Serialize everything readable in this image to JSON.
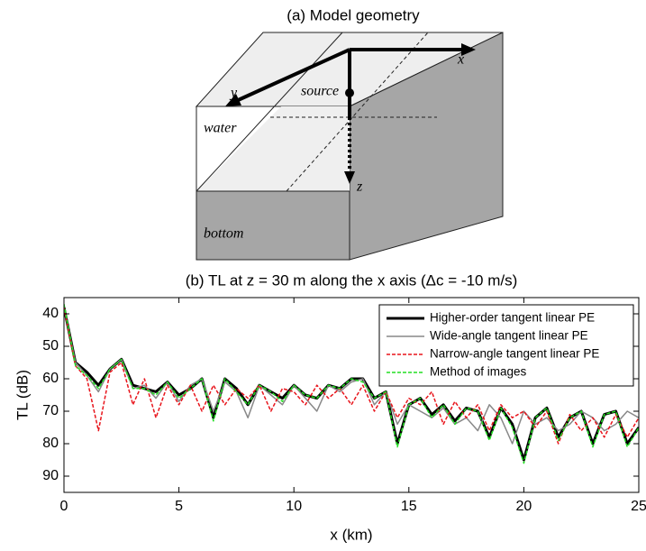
{
  "diagram": {
    "title": "(a) Model geometry",
    "labels": {
      "x": "x",
      "y": "y",
      "z": "z",
      "source": "source",
      "water": "water",
      "bottom": "bottom"
    }
  },
  "chart_data": {
    "type": "line",
    "title": "(b) TL at z = 30 m along the x axis (Δc = -10 m/s)",
    "xlabel": "x (km)",
    "ylabel": "TL (dB)",
    "xlim": [
      0,
      25
    ],
    "ylim": [
      35,
      95
    ],
    "y_reversed": true,
    "xticks": [
      0,
      5,
      10,
      15,
      20,
      25
    ],
    "yticks": [
      40,
      50,
      60,
      70,
      80,
      90
    ],
    "legend": "upper right",
    "x": [
      0,
      0.5,
      1,
      1.5,
      2,
      2.5,
      3,
      3.5,
      4,
      4.5,
      5,
      5.5,
      6,
      6.5,
      7,
      7.5,
      8,
      8.5,
      9,
      9.5,
      10,
      10.5,
      11,
      11.5,
      12,
      12.5,
      13,
      13.5,
      14,
      14.5,
      15,
      15.5,
      16,
      16.5,
      17,
      17.5,
      18,
      18.5,
      19,
      19.5,
      20,
      20.5,
      21,
      21.5,
      22,
      22.5,
      23,
      23.5,
      24,
      24.5,
      25
    ],
    "series": [
      {
        "name": "Higher-order tangent linear PE",
        "color": "#000000",
        "width": 3,
        "dash": "solid",
        "values": [
          38,
          55,
          58,
          62,
          57,
          54,
          62,
          63,
          64,
          61,
          65,
          63,
          60,
          72,
          60,
          63,
          68,
          62,
          64,
          66,
          62,
          65,
          66,
          62,
          63,
          60,
          60,
          66,
          64,
          80,
          68,
          66,
          71,
          68,
          73,
          69,
          70,
          78,
          69,
          74,
          85,
          72,
          69,
          78,
          72,
          70,
          80,
          71,
          70,
          80,
          75
        ]
      },
      {
        "name": "Wide-angle tangent linear PE",
        "color": "#888888",
        "width": 1.5,
        "dash": "solid",
        "values": [
          38,
          55,
          59,
          64,
          57,
          54,
          63,
          62,
          66,
          61,
          67,
          62,
          60,
          70,
          61,
          64,
          72,
          62,
          65,
          68,
          62,
          66,
          70,
          62,
          64,
          61,
          60,
          68,
          64,
          74,
          68,
          70,
          72,
          69,
          74,
          72,
          76,
          68,
          72,
          80,
          70,
          74,
          72,
          76,
          74,
          70,
          72,
          76,
          74,
          70,
          72
        ]
      },
      {
        "name": "Narrow-angle tangent linear PE",
        "color": "#e8141b",
        "width": 1.5,
        "dash": "dashed",
        "values": [
          38,
          56,
          60,
          76,
          58,
          55,
          68,
          60,
          72,
          62,
          68,
          62,
          70,
          62,
          68,
          63,
          66,
          62,
          70,
          63,
          64,
          68,
          62,
          66,
          63,
          68,
          62,
          70,
          64,
          72,
          66,
          68,
          64,
          74,
          67,
          72,
          68,
          76,
          68,
          72,
          70,
          75,
          70,
          80,
          71,
          76,
          72,
          78,
          71,
          78,
          72
        ]
      },
      {
        "name": "Method of images",
        "color": "#22dd22",
        "width": 1.5,
        "dash": "dashed",
        "values": [
          37,
          56,
          59,
          63,
          57,
          54,
          63,
          63,
          65,
          61,
          66,
          63,
          60,
          73,
          60,
          64,
          68,
          62,
          64,
          67,
          62,
          65,
          66,
          62,
          63,
          60,
          61,
          66,
          64,
          81,
          68,
          66,
          72,
          68,
          74,
          69,
          70,
          79,
          69,
          75,
          86,
          72,
          69,
          79,
          72,
          70,
          81,
          71,
          70,
          81,
          75
        ]
      }
    ]
  }
}
